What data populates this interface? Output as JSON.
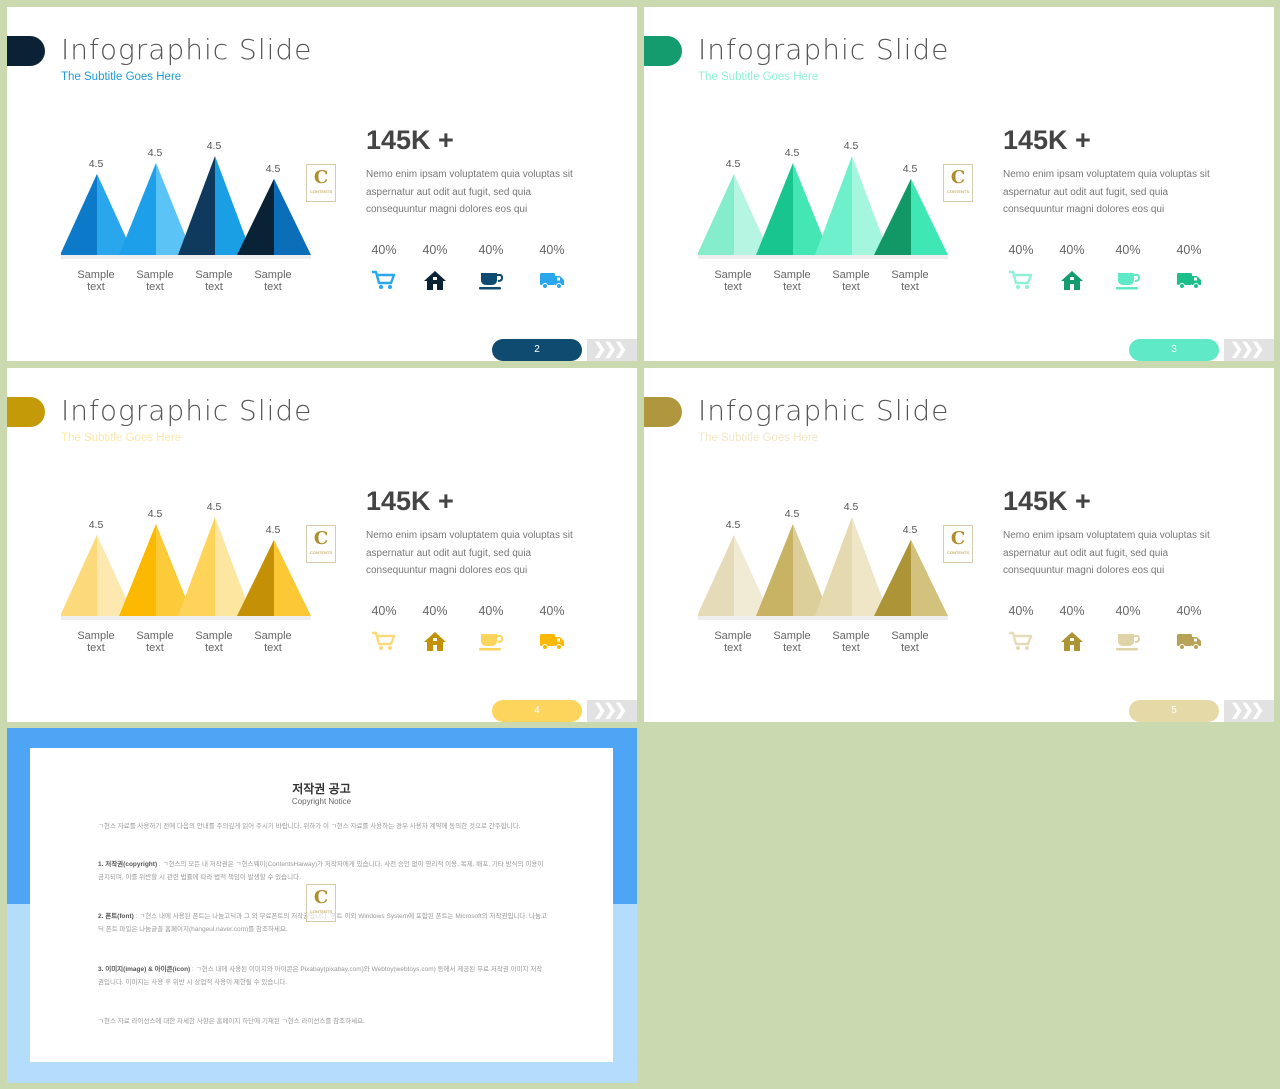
{
  "slides": [
    {
      "title": "Infographic Slide",
      "subtitle": "The Subtitle Goes Here",
      "stat": "145K +",
      "description": "Nemo enim ipsam voluptatem quia voluptas sit aspernatur aut odit aut fugit, sed quia consequuntur magni dolores eos qui",
      "page_number": "2",
      "tab_color": "#0b2236",
      "subtitle_color": "#1f9bd6",
      "pill_color": "#0f4b70",
      "chart_data": {
        "type": "bar",
        "categories": [
          "Sample text",
          "Sample text",
          "Sample text",
          "Sample text"
        ],
        "values": [
          4.5,
          4.5,
          4.5,
          4.5
        ]
      },
      "value_labels": [
        "4.5",
        "4.5",
        "4.5",
        "4.5"
      ],
      "category_labels": [
        [
          "Sample",
          "text"
        ],
        [
          "Sample",
          "text"
        ],
        [
          "Sample",
          "text"
        ],
        [
          "Sample",
          "text"
        ]
      ],
      "peak_colors": [
        [
          "#0c79c9",
          "#2aa6ec"
        ],
        [
          "#1e9fe9",
          "#5cc3f7"
        ],
        [
          "#0f3a5e",
          "#1a9fe4"
        ],
        [
          "#0a2236",
          "#0c6eb8"
        ]
      ],
      "percentages": [
        "40%",
        "40%",
        "40%",
        "40%"
      ],
      "icons": [
        {
          "name": "cart-icon",
          "color": "#2aa6ec"
        },
        {
          "name": "house-icon",
          "color": "#0a2236"
        },
        {
          "name": "cup-icon",
          "color": "#0f4b70"
        },
        {
          "name": "truck-icon",
          "color": "#2aa6ec"
        }
      ]
    },
    {
      "title": "Infographic Slide",
      "subtitle": "The Subtitle Goes Here",
      "stat": "145K +",
      "description": "Nemo enim ipsam voluptatem quia voluptas sit aspernatur aut odit aut fugit, sed quia consequuntur magni dolores eos qui",
      "page_number": "3",
      "tab_color": "#149b6e",
      "subtitle_color": "#8ff0d6",
      "pill_color": "#5fe9c6",
      "chart_data": {
        "type": "bar",
        "categories": [
          "Sample text",
          "Sample text",
          "Sample text",
          "Sample text"
        ],
        "values": [
          4.5,
          4.5,
          4.5,
          4.5
        ]
      },
      "value_labels": [
        "4.5",
        "4.5",
        "4.5",
        "4.5"
      ],
      "category_labels": [
        [
          "Sample",
          "text"
        ],
        [
          "Sample",
          "text"
        ],
        [
          "Sample",
          "text"
        ],
        [
          "Sample",
          "text"
        ]
      ],
      "peak_colors": [
        [
          "#85edcc",
          "#b6f5e2"
        ],
        [
          "#18c58f",
          "#44e7b4"
        ],
        [
          "#6ff0cc",
          "#a4f6df"
        ],
        [
          "#129866",
          "#3fe7b4"
        ]
      ],
      "percentages": [
        "40%",
        "40%",
        "40%",
        "40%"
      ],
      "icons": [
        {
          "name": "cart-icon",
          "color": "#8ff0d6"
        },
        {
          "name": "house-icon",
          "color": "#149b6e"
        },
        {
          "name": "cup-icon",
          "color": "#5fe9c6"
        },
        {
          "name": "truck-icon",
          "color": "#1bbf8a"
        }
      ]
    },
    {
      "title": "Infographic Slide",
      "subtitle": "The Subtitle Goes Here",
      "stat": "145K +",
      "description": "Nemo enim ipsam voluptatem quia voluptas sit aspernatur aut odit aut fugit, sed quia consequuntur magni dolores eos qui",
      "page_number": "4",
      "tab_color": "#c59a08",
      "subtitle_color": "#fbe9a8",
      "pill_color": "#fdd55d",
      "chart_data": {
        "type": "bar",
        "categories": [
          "Sample text",
          "Sample text",
          "Sample text",
          "Sample text"
        ],
        "values": [
          4.5,
          4.5,
          4.5,
          4.5
        ]
      },
      "value_labels": [
        "4.5",
        "4.5",
        "4.5",
        "4.5"
      ],
      "category_labels": [
        [
          "Sample",
          "text"
        ],
        [
          "Sample",
          "text"
        ],
        [
          "Sample",
          "text"
        ],
        [
          "Sample",
          "text"
        ]
      ],
      "peak_colors": [
        [
          "#fcd97a",
          "#fde9b0"
        ],
        [
          "#fdb902",
          "#fdcb3a"
        ],
        [
          "#fdd35a",
          "#fde6a0"
        ],
        [
          "#c49106",
          "#fdc836"
        ]
      ],
      "percentages": [
        "40%",
        "40%",
        "40%",
        "40%"
      ],
      "icons": [
        {
          "name": "cart-icon",
          "color": "#fdd97a"
        },
        {
          "name": "house-icon",
          "color": "#c49106"
        },
        {
          "name": "cup-icon",
          "color": "#fdd55d"
        },
        {
          "name": "truck-icon",
          "color": "#fdb902"
        }
      ]
    },
    {
      "title": "Infographic Slide",
      "subtitle": "The Subtitle Goes Here",
      "stat": "145K +",
      "description": "Nemo enim ipsam voluptatem quia voluptas sit aspernatur aut odit aut fugit, sed quia consequuntur magni dolores eos qui",
      "page_number": "5",
      "tab_color": "#b0973e",
      "subtitle_color": "#f0e7c6",
      "pill_color": "#e6d9a8",
      "chart_data": {
        "type": "bar",
        "categories": [
          "Sample text",
          "Sample text",
          "Sample text",
          "Sample text"
        ],
        "values": [
          4.5,
          4.5,
          4.5,
          4.5
        ]
      },
      "value_labels": [
        "4.5",
        "4.5",
        "4.5",
        "4.5"
      ],
      "category_labels": [
        [
          "Sample",
          "text"
        ],
        [
          "Sample",
          "text"
        ],
        [
          "Sample",
          "text"
        ],
        [
          "Sample",
          "text"
        ]
      ],
      "peak_colors": [
        [
          "#e6dbb8",
          "#f1ead4"
        ],
        [
          "#c7b363",
          "#ddcf9a"
        ],
        [
          "#e5d9b0",
          "#efe6c8"
        ],
        [
          "#ad9436",
          "#d3c17e"
        ]
      ],
      "percentages": [
        "40%",
        "40%",
        "40%",
        "40%"
      ],
      "icons": [
        {
          "name": "cart-icon",
          "color": "#e6dbb8"
        },
        {
          "name": "house-icon",
          "color": "#ad9436"
        },
        {
          "name": "cup-icon",
          "color": "#e0d3a8"
        },
        {
          "name": "truck-icon",
          "color": "#b8a257"
        }
      ]
    }
  ],
  "arrows_text": "❯❯❯",
  "logo": {
    "letter": "C",
    "text": "CONTENTS"
  },
  "notice": {
    "title": "저작권 공고",
    "subtitle": "Copyright Notice",
    "paragraphs": [
      {
        "heading": "",
        "text": "ㄱ현스 자료를 사용하기 전에 다음의 안내를 주의깊게 읽어 주시기 바랍니다. 위하가 이 ㄱ현스 자료를 사용하는 경우 사용자 계약에 동의한 것으로 간주합니다."
      },
      {
        "heading": "1. 저작권(copyright)",
        "text": " : ㄱ현스의 모든 내 저작권은 ㄱ현스웨이(ContentsHaiway)가 저작자에게 있습니다. 사전 승인 없이 영리적 이용, 복제, 배포, 기타 방식의 이용이 금지되며, 이를 위반할 시 관련 법률에 따라 법적 책임이 발생할 수 있습니다."
      },
      {
        "heading": "2. 폰트(font)",
        "text": " : ㄱ현스 내에 사용된 폰트는 나눔고딕과 그 외 무료폰트의 저작권입니다. 폰트 이외 Windows System에 포함된 폰트는 Microsoft의 저작권입니다. 나눔고딕 폰트 파일은 나눔글꼴 홈페이지(hangeul.naver.com)를 참조하세요."
      },
      {
        "heading": "3. 이미지(image) & 아이콘(icon)",
        "text": " : ㄱ현스 내에 사용된 이미지와 아이콘은 Pixabay(pixabay.com)와 Webtoy(webtoys.com) 등에서 제공된 무료 저작권 이미지 저작권입니다. 이미지는 사용 후 위반 시 상업적 사용이 제한될 수 있습니다."
      },
      {
        "heading": "",
        "text": "ㄱ현스 자료 라이선스에 대한 자세한 사항은 홈페이지 하단에 기재된 ㄱ현스 라이선스를 참조하세요."
      }
    ]
  }
}
